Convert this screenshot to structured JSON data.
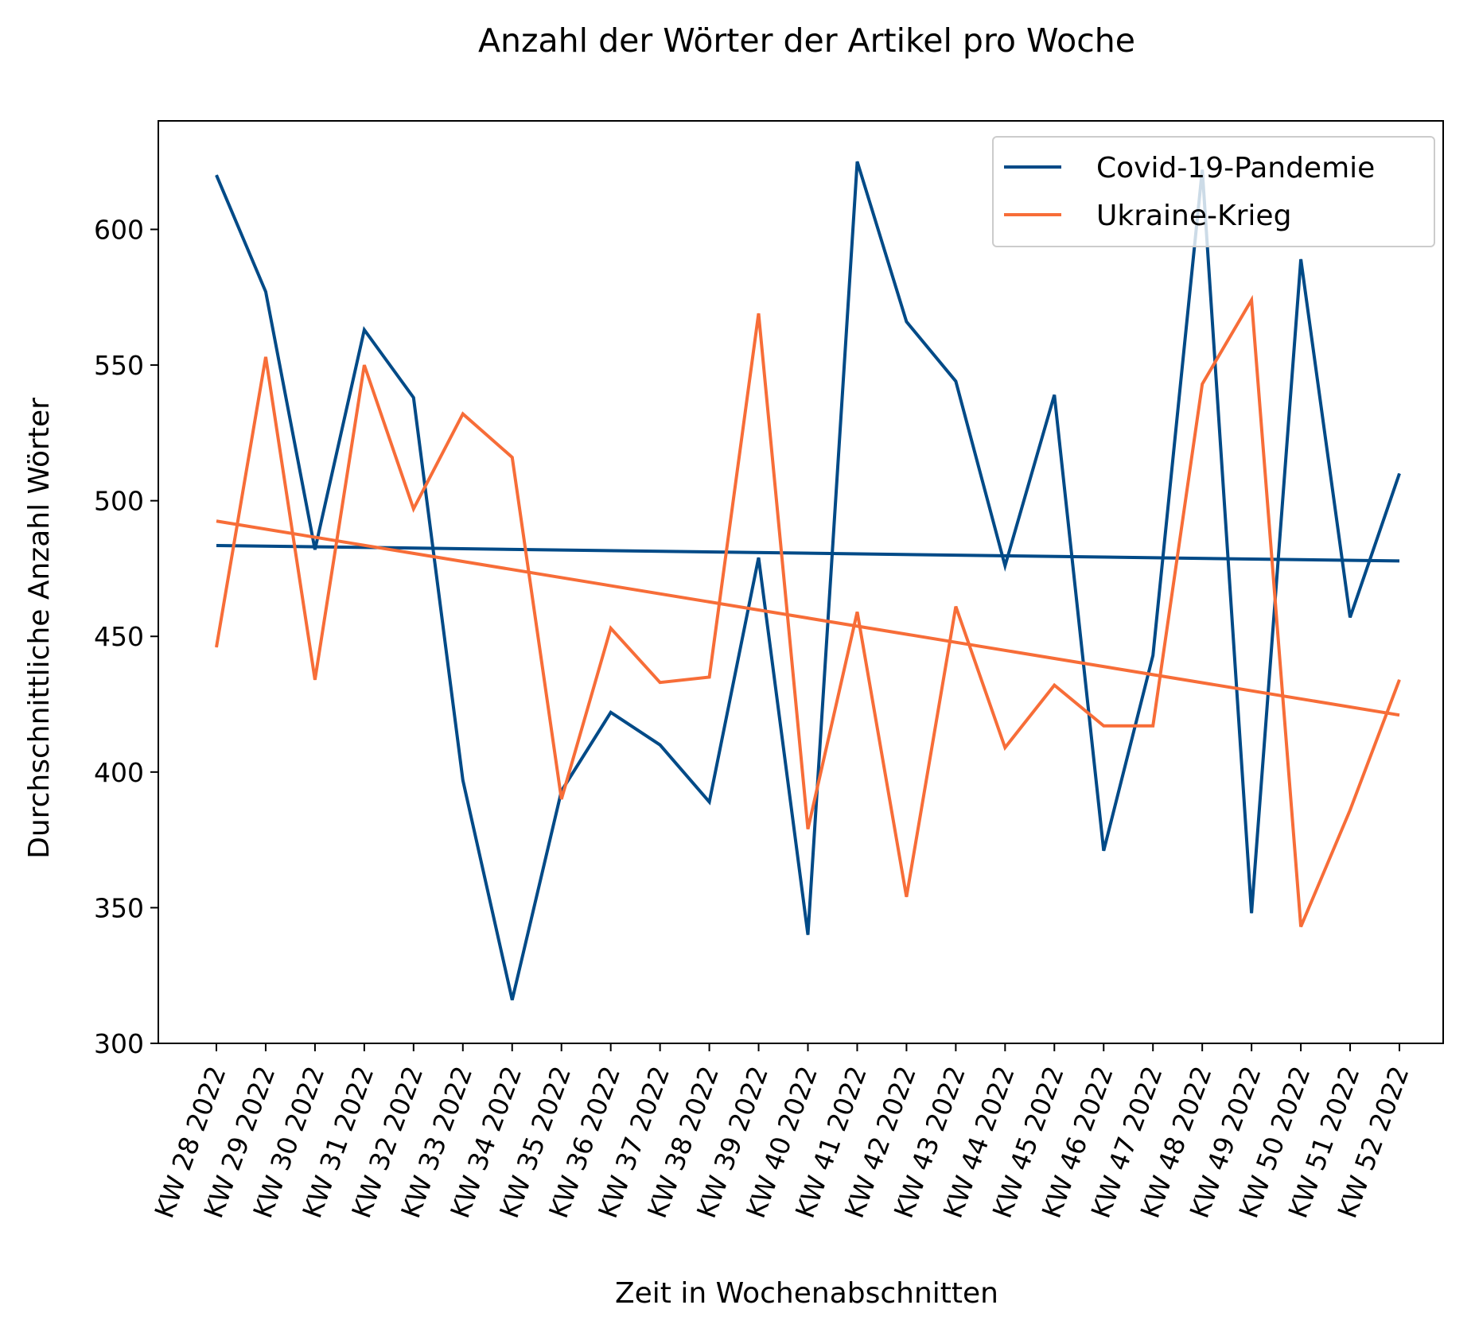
{
  "chart_data": {
    "type": "line",
    "title": "Anzahl der Wörter der Artikel pro Woche",
    "xlabel": "Zeit in Wochenabschnitten",
    "ylabel": "Durchschnittliche Anzahl Wörter",
    "ylim": [
      300,
      640
    ],
    "yticks": [
      300,
      350,
      400,
      450,
      500,
      550,
      600
    ],
    "grid": false,
    "legend_position": "top-right",
    "categories": [
      "KW 28 2022",
      "KW 29 2022",
      "KW 30 2022",
      "KW 31 2022",
      "KW 32 2022",
      "KW 33 2022",
      "KW 34 2022",
      "KW 35 2022",
      "KW 36 2022",
      "KW 37 2022",
      "KW 38 2022",
      "KW 39 2022",
      "KW 40 2022",
      "KW 41 2022",
      "KW 42 2022",
      "KW 43 2022",
      "KW 44 2022",
      "KW 45 2022",
      "KW 46 2022",
      "KW 47 2022",
      "KW 48 2022",
      "KW 49 2022",
      "KW 50 2022",
      "KW 51 2022",
      "KW 52 2022"
    ],
    "series": [
      {
        "name": "Covid-19-Pandemie",
        "color": "#004a87",
        "values": [
          620,
          577,
          482,
          563,
          538,
          397,
          316,
          393,
          422,
          410,
          389,
          479,
          340,
          625,
          566,
          544,
          476,
          539,
          371,
          443,
          622,
          348,
          589,
          457,
          510
        ],
        "trend": [
          483.5,
          477.8
        ]
      },
      {
        "name": "Ukraine-Krieg",
        "color": "#f76d38",
        "values": [
          446,
          553,
          434,
          550,
          497,
          532,
          516,
          390,
          453,
          433,
          435,
          569,
          379,
          459,
          354,
          461,
          409,
          432,
          417,
          417,
          543,
          574,
          343,
          386,
          434
        ],
        "trend": [
          492.5,
          421
        ]
      }
    ]
  }
}
